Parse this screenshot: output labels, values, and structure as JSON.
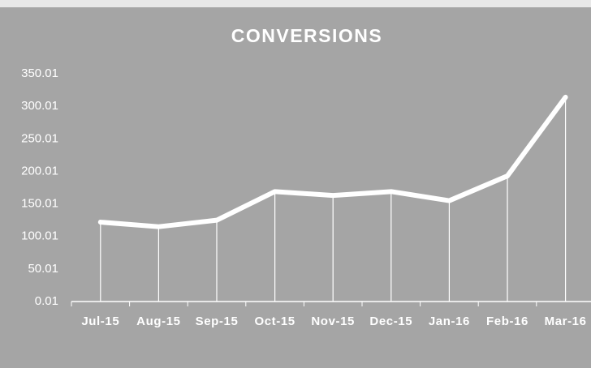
{
  "chart_data": {
    "type": "line",
    "title": "CONVERSIONS",
    "categories": [
      "Jul-15",
      "Aug-15",
      "Sep-15",
      "Oct-15",
      "Nov-15",
      "Dec-15",
      "Jan-16",
      "Feb-16",
      "Mar-16"
    ],
    "values": [
      122,
      115,
      125,
      169,
      163,
      169,
      155,
      193,
      314
    ],
    "color": "#ffffff",
    "ylim": [
      0.01,
      350.01
    ],
    "yticks": [
      0.01,
      50.01,
      100.01,
      150.01,
      200.01,
      250.01,
      300.01,
      350.01
    ],
    "drop_lines": true
  }
}
